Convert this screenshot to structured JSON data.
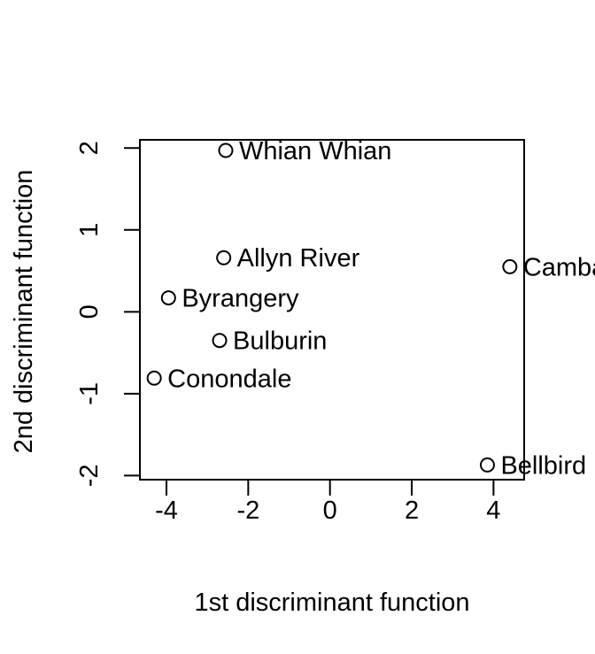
{
  "chart_data": {
    "type": "scatter",
    "title": "",
    "xlabel": "1st discriminant function",
    "ylabel": "2nd discriminant function",
    "xlim": [
      -4.65,
      4.75
    ],
    "ylim": [
      -2.05,
      2.1
    ],
    "xticks": [
      -4,
      -2,
      0,
      2,
      4
    ],
    "yticks": [
      -2,
      -1,
      0,
      1,
      2
    ],
    "xtick_labels": [
      "-4",
      "-2",
      "0",
      "2",
      "4"
    ],
    "ytick_labels": [
      "-2",
      "-1",
      "0",
      "1",
      "2"
    ],
    "points": [
      {
        "label": "Whian Whian",
        "x": -2.55,
        "y": 1.97
      },
      {
        "label": "Allyn River",
        "x": -2.6,
        "y": 0.66
      },
      {
        "label": "Byrangery",
        "x": -3.95,
        "y": 0.17
      },
      {
        "label": "Bulburin",
        "x": -2.7,
        "y": -0.35
      },
      {
        "label": "Conondale",
        "x": -4.3,
        "y": -0.81
      },
      {
        "label": "Cambarville",
        "x": 4.4,
        "y": 0.55
      },
      {
        "label": "Bellbird",
        "x": 3.85,
        "y": -1.87
      }
    ],
    "grid": false,
    "legend": "none",
    "marker": "open-circle",
    "color": "#000000"
  }
}
